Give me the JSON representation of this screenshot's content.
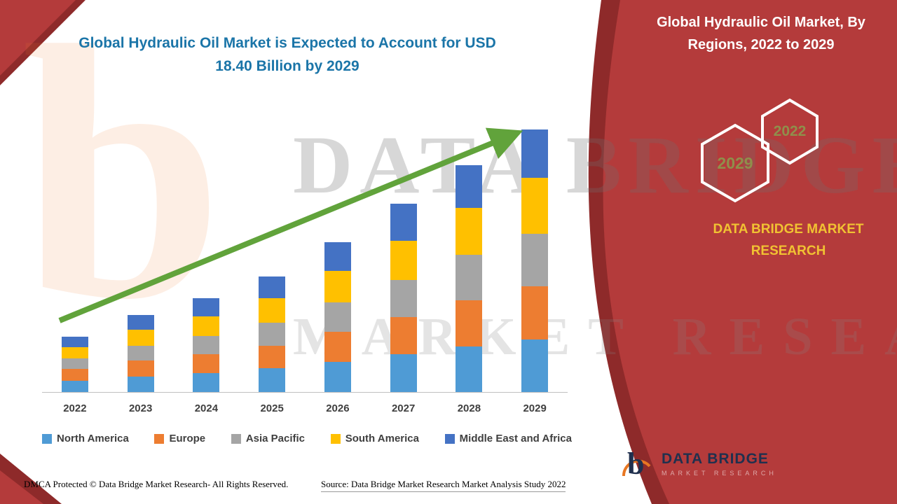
{
  "title": {
    "line1": "Global Hydraulic Oil Market is Expected to Account for USD",
    "line2": "18.40 Billion by 2029"
  },
  "panel": {
    "title_line1": "Global Hydraulic Oil Market, By",
    "title_line2": "Regions, 2022 to 2029",
    "hexagon_back": "2029",
    "hexagon_front": "2022",
    "brand_line1": "DATA BRIDGE MARKET",
    "brand_line2": "RESEARCH",
    "red": "#B43B3B",
    "dark_red": "#8E2A2A",
    "gold": "#F1C232"
  },
  "footer_logo": {
    "title": "DATA BRIDGE",
    "subtitle": "MARKET RESEARCH"
  },
  "watermark": {
    "line1": "DATA BRIDGE",
    "line2": "MARKET RESEARCH",
    "letter_b": "b"
  },
  "footer": {
    "dmca": "DMCA Protected © Data Bridge Market Research- All Rights Reserved.",
    "source": "Source: Data Bridge Market Research Market Analysis Study 2022"
  },
  "arrow_color": "#61A33B",
  "chart_data": {
    "type": "bar",
    "stacked": true,
    "title": "Global Hydraulic Oil Market is Expected to Account for USD 18.40 Billion by 2029",
    "unit": "USD Billion",
    "categories": [
      "2022",
      "2023",
      "2024",
      "2025",
      "2026",
      "2027",
      "2028",
      "2029"
    ],
    "series": [
      {
        "name": "North America",
        "color": "#4F9BD5",
        "values": [
          0.8,
          1.1,
          1.35,
          1.65,
          2.1,
          2.65,
          3.2,
          3.7
        ]
      },
      {
        "name": "Europe",
        "color": "#ED7D31",
        "values": [
          0.8,
          1.1,
          1.3,
          1.6,
          2.1,
          2.6,
          3.2,
          3.7
        ]
      },
      {
        "name": "Asia Pacific",
        "color": "#A5A5A5",
        "values": [
          0.75,
          1.05,
          1.3,
          1.6,
          2.1,
          2.6,
          3.2,
          3.7
        ]
      },
      {
        "name": "South America",
        "color": "#FFC000",
        "values": [
          0.8,
          1.1,
          1.35,
          1.7,
          2.2,
          2.75,
          3.3,
          3.9
        ]
      },
      {
        "name": "Middle East and Africa",
        "color": "#4472C4",
        "values": [
          0.75,
          1.05,
          1.3,
          1.55,
          2.0,
          2.6,
          3.0,
          3.4
        ]
      }
    ],
    "totals": [
      3.9,
      5.4,
      6.6,
      8.1,
      10.5,
      13.2,
      15.9,
      18.4
    ],
    "ylim": [
      0,
      20
    ],
    "grid": false,
    "legend_position": "bottom",
    "trend_arrow": true
  }
}
